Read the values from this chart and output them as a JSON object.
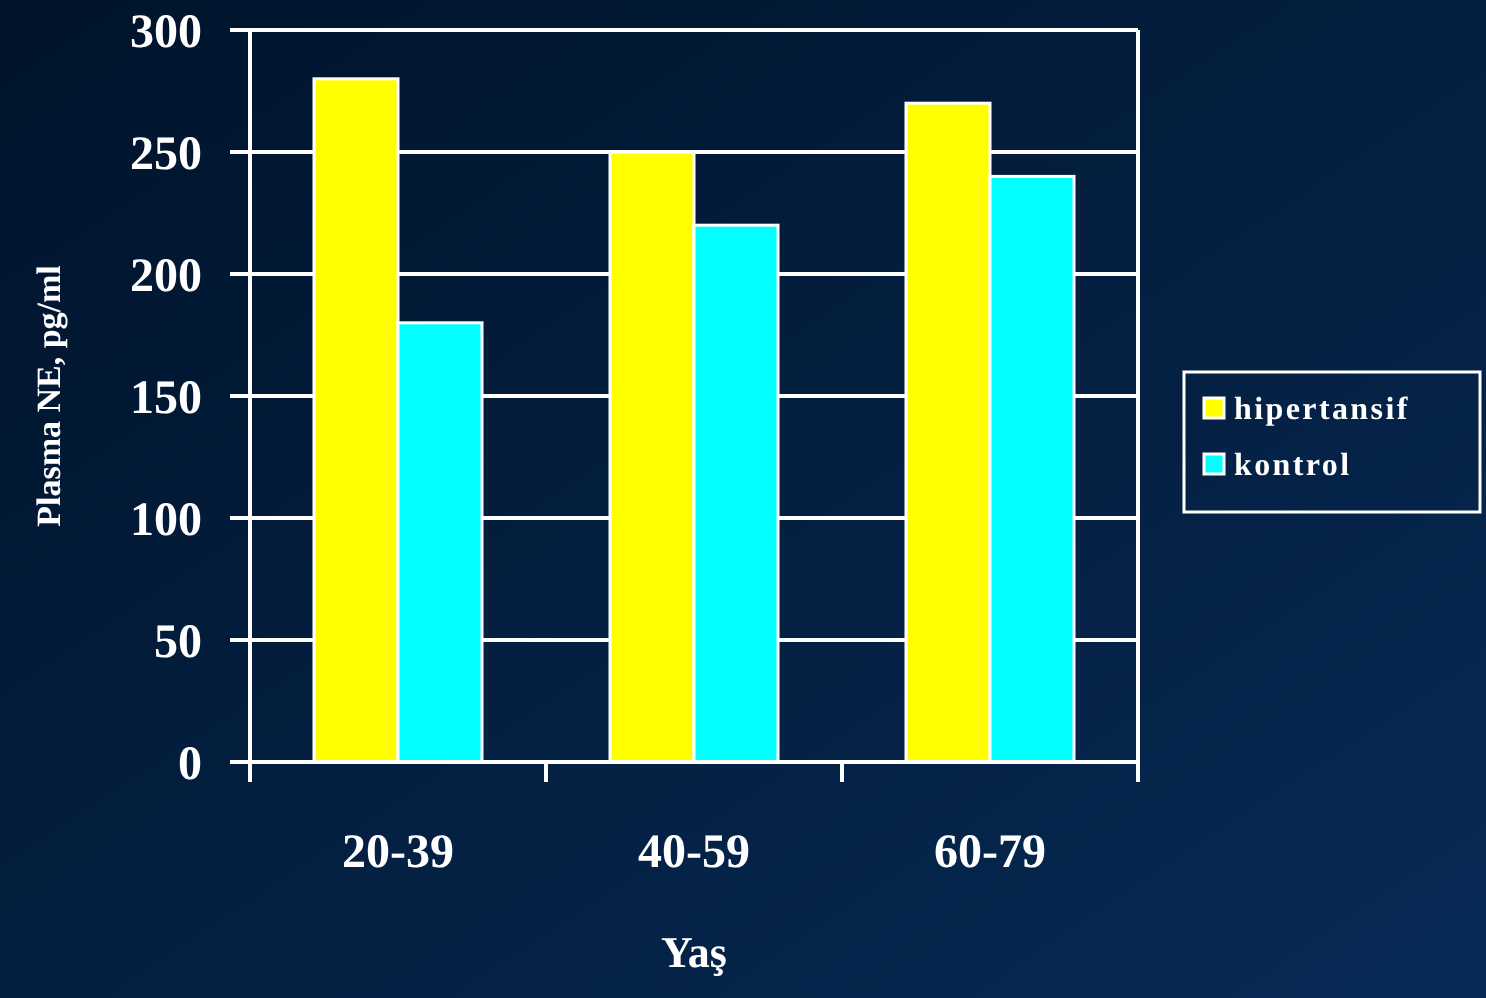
{
  "chart_data": {
    "type": "bar",
    "xlabel": "Yaş",
    "ylabel": "Plasma NE, pg/ml",
    "categories": [
      "20-39",
      "40-59",
      "60-79"
    ],
    "series": [
      {
        "name": "hipertansif",
        "color": "#ffff00",
        "values": [
          280,
          250,
          270
        ]
      },
      {
        "name": "kontrol",
        "color": "#00ffff",
        "values": [
          180,
          220,
          240
        ]
      }
    ],
    "ylim": [
      0,
      300
    ],
    "yticks": [
      0,
      50,
      100,
      150,
      200,
      250,
      300
    ],
    "grid": "y",
    "legend": "right"
  }
}
